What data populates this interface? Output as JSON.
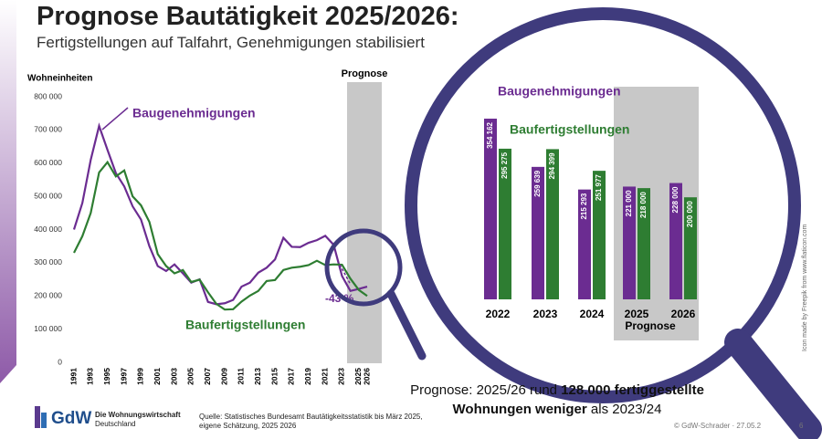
{
  "slide": {
    "title": "Prognose Bautätigkeit 2025/2026:",
    "subtitle": "Fertigstellungen auf Talfahrt, Genehmigungen stabilisiert",
    "summary": [
      "Prognose: 2025/26 rund ",
      "128.000 fertiggestellte",
      "Wohnungen weniger",
      " als 2023/24"
    ],
    "source": [
      "Quelle: Statistisches Bundesamt Bautätigkeitsstatistik bis März 2025,",
      "eigene Schätzung, 2025 2026"
    ],
    "logo": {
      "mark": "GdW",
      "line1": "Die Wohnungswirtschaft",
      "line2": "Deutschland"
    },
    "credit": "© GdW-Schrader · 27.05.2",
    "page": "6",
    "icon_credit": "Icon made by Freepik from www.flaticon.com"
  },
  "chart_data": [
    {
      "type": "line",
      "y_label": "Wohneinheiten",
      "forecast_label": "Prognose",
      "annotation": "-43 %",
      "x": [
        1991,
        1992,
        1993,
        1994,
        1995,
        1996,
        1997,
        1998,
        1999,
        2000,
        2001,
        2002,
        2003,
        2004,
        2005,
        2006,
        2007,
        2008,
        2009,
        2010,
        2011,
        2012,
        2013,
        2014,
        2015,
        2016,
        2017,
        2018,
        2019,
        2020,
        2021,
        2022,
        2023,
        2024,
        2025,
        2026
      ],
      "xlim": [
        1991,
        2026
      ],
      "xticks": [
        1991,
        1993,
        1995,
        1997,
        1999,
        2001,
        2003,
        2005,
        2007,
        2009,
        2011,
        2013,
        2015,
        2017,
        2019,
        2021,
        2023,
        2025,
        2026
      ],
      "ylim": [
        0,
        800000
      ],
      "yticks": [
        0,
        {
          "value": 100000,
          "label": "100 000"
        },
        {
          "value": 200000,
          "label": "200 000"
        },
        {
          "value": 300000,
          "label": "300 000"
        },
        {
          "value": 400000,
          "label": "400 000"
        },
        {
          "value": 500000,
          "label": "500 000"
        },
        {
          "value": 600000,
          "label": "600 000"
        },
        {
          "value": 700000,
          "label": "700 000"
        },
        {
          "value": 800000,
          "label": "800 000"
        }
      ],
      "series": [
        {
          "name": "Baugenehmigungen",
          "color": "#6b2c91",
          "values": [
            400000,
            480000,
            610000,
            712000,
            640000,
            570000,
            530000,
            470000,
            430000,
            350000,
            290000,
            275000,
            295000,
            268000,
            240000,
            250000,
            182000,
            175000,
            178000,
            188000,
            228000,
            240000,
            270000,
            285000,
            310000,
            375000,
            348000,
            347000,
            360000,
            368000,
            381000,
            354000,
            260000,
            215000,
            221000,
            228000
          ]
        },
        {
          "name": "Baufertigstellungen",
          "color": "#2e7d32",
          "values": [
            330000,
            380000,
            450000,
            572000,
            603000,
            560000,
            578000,
            500000,
            473000,
            423000,
            326000,
            290000,
            268000,
            278000,
            242000,
            249000,
            211000,
            176000,
            159000,
            160000,
            183000,
            201000,
            215000,
            245000,
            248000,
            278000,
            285000,
            288000,
            293000,
            306000,
            293000,
            295000,
            294000,
            252000,
            218000,
            200000
          ]
        }
      ]
    },
    {
      "type": "bar",
      "forecast_label": "Prognose",
      "categories": [
        "2022",
        "2023",
        "2024",
        "2025",
        "2026"
      ],
      "series": [
        {
          "name": "Baugenehmigungen",
          "color": "#6b2c91",
          "values": [
            354162,
            259639,
            215293,
            221000,
            228000
          ],
          "value_labels": [
            "354 162",
            "259 639",
            "215 293",
            "221 000",
            "228 000"
          ]
        },
        {
          "name": "Baufertigstellungen",
          "color": "#2e7d32",
          "values": [
            295275,
            294399,
            251977,
            218000,
            200000
          ],
          "value_labels": [
            "295 275",
            "294 399",
            "251 977",
            "218 000",
            "200 000"
          ]
        }
      ]
    }
  ]
}
